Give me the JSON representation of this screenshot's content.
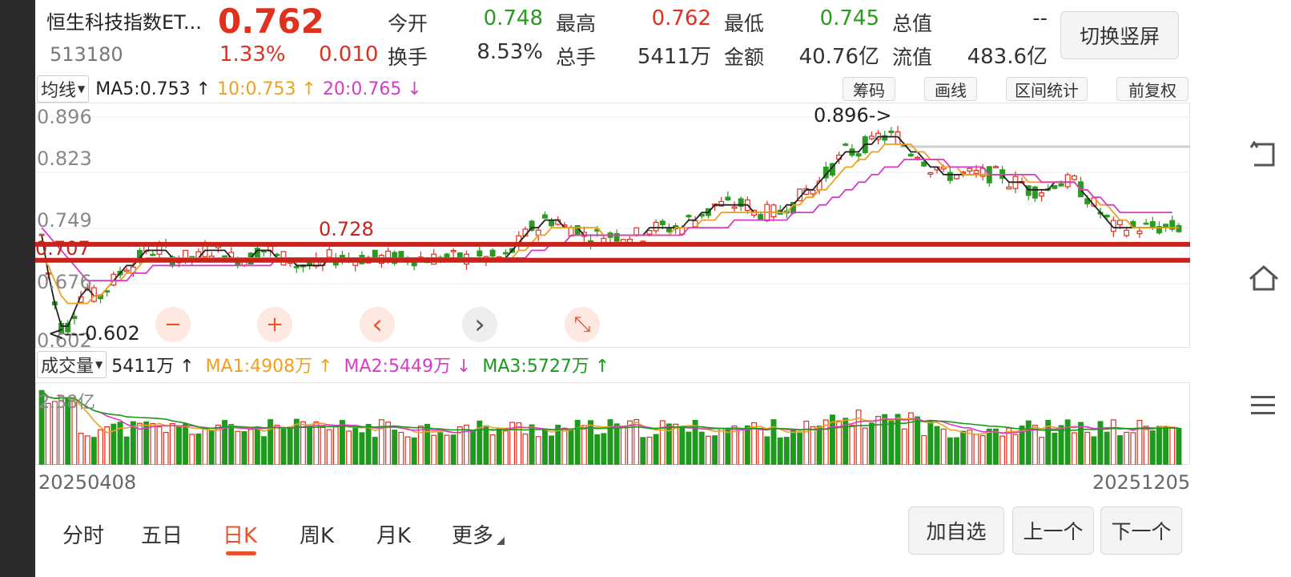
{
  "header": {
    "name": "恒生科技指数ET...",
    "code": "513180",
    "price": "0.762",
    "change_pct": "1.33%",
    "change_amt": "0.010",
    "fields": {
      "open_label": "今开",
      "open": "0.748",
      "high_label": "最高",
      "high": "0.762",
      "low_label": "最低",
      "low": "0.745",
      "total_value_label": "总值",
      "total_value": "--",
      "turnover_label": "换手",
      "turnover": "8.53%",
      "total_hands_label": "总手",
      "total_hands": "5411万",
      "amount_label": "金额",
      "amount": "40.76亿",
      "float_value_label": "流值",
      "float_value": "483.6亿"
    },
    "switch_label": "切换竖屏"
  },
  "price_legend": {
    "selector": "均线",
    "ma5": "MA5:0.753 ↑",
    "ma10": "10:0.753 ↑",
    "ma20": "20:0.765 ↓"
  },
  "toolbar": {
    "chips": "筹码",
    "draw": "画线",
    "range_stats": "区间统计",
    "adjust": "前复权"
  },
  "price_axis": {
    "t1": "0.896",
    "t2": "0.823",
    "t3": "0.749",
    "t4": "0.676",
    "t5": "0.602"
  },
  "annotations": {
    "high_marker": "0.896->",
    "low_marker": "<---0.602",
    "line1": "0.728",
    "line2": "0.707"
  },
  "zoom": {
    "zoom_out": "−",
    "zoom_in": "+",
    "prev": "‹",
    "next": "›",
    "reset": "⤡"
  },
  "volume_legend": {
    "selector": "成交量",
    "vol": "5411万 ↑",
    "ma1": "MA1:4908万 ↑",
    "ma2": "MA2:5449万 ↓",
    "ma3": "MA3:5727万 ↑"
  },
  "volume_axis": {
    "max": "2.38亿"
  },
  "date_range": {
    "start": "20250408",
    "end": "20251205"
  },
  "tabs": [
    "分时",
    "五日",
    "日K",
    "周K",
    "月K",
    "更多"
  ],
  "active_tab": "日K",
  "actions": {
    "add_watch": "加自选",
    "prev_stock": "上一个",
    "next_stock": "下一个"
  },
  "rail_icons": [
    "rotate-icon",
    "home-icon",
    "menu-icon"
  ],
  "colors": {
    "up": "#e0301e",
    "down": "#2a9a22",
    "ma5": "#222222",
    "ma10": "#f0a020",
    "ma20": "#d63cc6",
    "support": "#c8221a"
  },
  "chart_data": {
    "type": "candlestick",
    "price_range": [
      0.602,
      0.896
    ],
    "horizontal_lines": [
      0.728,
      0.707
    ],
    "start_date": "20250408",
    "end_date": "20251205",
    "series": [
      {
        "name": "MA5",
        "values": [
          0.74,
          0.69,
          0.65,
          0.62,
          0.62,
          0.64,
          0.66,
          0.67,
          0.66,
          0.66,
          0.67,
          0.68,
          0.69,
          0.7,
          0.7,
          0.71,
          0.72,
          0.72,
          0.72,
          0.72,
          0.71,
          0.71,
          0.71,
          0.71,
          0.71,
          0.72,
          0.72,
          0.72,
          0.72,
          0.71,
          0.71,
          0.71,
          0.71,
          0.72,
          0.72,
          0.72,
          0.71,
          0.71,
          0.71,
          0.7,
          0.7,
          0.7,
          0.7,
          0.7,
          0.71,
          0.71,
          0.71,
          0.71,
          0.71,
          0.71,
          0.71,
          0.71,
          0.71,
          0.71,
          0.71,
          0.71,
          0.71,
          0.71,
          0.71,
          0.71,
          0.71,
          0.71,
          0.71,
          0.71,
          0.71,
          0.71,
          0.71,
          0.71,
          0.71,
          0.71,
          0.71,
          0.71,
          0.72,
          0.73,
          0.74,
          0.75,
          0.75,
          0.76,
          0.76,
          0.76,
          0.75,
          0.75,
          0.75,
          0.74,
          0.74,
          0.74,
          0.74,
          0.74,
          0.74,
          0.74,
          0.74,
          0.74,
          0.74,
          0.75,
          0.75,
          0.75,
          0.75,
          0.75,
          0.75,
          0.76,
          0.76,
          0.77,
          0.77,
          0.78,
          0.78,
          0.78,
          0.78,
          0.78,
          0.78,
          0.77,
          0.77,
          0.77,
          0.77,
          0.77,
          0.78,
          0.78,
          0.79,
          0.8,
          0.8,
          0.81,
          0.82,
          0.83,
          0.84,
          0.85,
          0.85,
          0.85,
          0.86,
          0.86,
          0.87,
          0.87,
          0.87,
          0.87,
          0.86,
          0.85,
          0.85,
          0.84,
          0.83,
          0.83,
          0.82,
          0.82,
          0.82,
          0.82,
          0.82,
          0.82,
          0.82,
          0.82,
          0.82,
          0.82,
          0.81,
          0.81,
          0.81,
          0.8,
          0.8,
          0.8,
          0.8,
          0.81,
          0.81,
          0.81,
          0.81,
          0.8,
          0.79,
          0.78,
          0.77,
          0.76,
          0.75,
          0.75,
          0.75,
          0.75,
          0.75,
          0.75,
          0.75,
          0.75,
          0.75,
          0.75,
          0.75
        ]
      },
      {
        "name": "MA10",
        "values": [
          0.71,
          0.7,
          0.68,
          0.66,
          0.65,
          0.65,
          0.65,
          0.65,
          0.66,
          0.66,
          0.67,
          0.68,
          0.68,
          0.69,
          0.69,
          0.7,
          0.71,
          0.71,
          0.71,
          0.71,
          0.71,
          0.71,
          0.71,
          0.71,
          0.71,
          0.71,
          0.71,
          0.71,
          0.71,
          0.71,
          0.71,
          0.71,
          0.71,
          0.71,
          0.71,
          0.71,
          0.71,
          0.71,
          0.71,
          0.71,
          0.71,
          0.71,
          0.71,
          0.71,
          0.71,
          0.71,
          0.71,
          0.71,
          0.71,
          0.71,
          0.71,
          0.71,
          0.71,
          0.71,
          0.71,
          0.71,
          0.71,
          0.71,
          0.71,
          0.71,
          0.71,
          0.71,
          0.71,
          0.71,
          0.71,
          0.71,
          0.71,
          0.71,
          0.71,
          0.71,
          0.71,
          0.71,
          0.71,
          0.72,
          0.72,
          0.73,
          0.74,
          0.74,
          0.75,
          0.75,
          0.75,
          0.75,
          0.75,
          0.75,
          0.75,
          0.75,
          0.74,
          0.74,
          0.74,
          0.74,
          0.74,
          0.74,
          0.74,
          0.74,
          0.74,
          0.74,
          0.74,
          0.75,
          0.75,
          0.75,
          0.75,
          0.76,
          0.76,
          0.76,
          0.77,
          0.77,
          0.77,
          0.77,
          0.77,
          0.77,
          0.77,
          0.77,
          0.77,
          0.77,
          0.77,
          0.78,
          0.78,
          0.79,
          0.79,
          0.8,
          0.8,
          0.81,
          0.82,
          0.83,
          0.83,
          0.84,
          0.84,
          0.85,
          0.85,
          0.86,
          0.86,
          0.86,
          0.86,
          0.86,
          0.85,
          0.85,
          0.84,
          0.84,
          0.83,
          0.83,
          0.83,
          0.82,
          0.82,
          0.82,
          0.82,
          0.82,
          0.82,
          0.82,
          0.82,
          0.82,
          0.82,
          0.81,
          0.81,
          0.81,
          0.81,
          0.81,
          0.81,
          0.81,
          0.81,
          0.8,
          0.8,
          0.79,
          0.78,
          0.78,
          0.77,
          0.76,
          0.76,
          0.75,
          0.75,
          0.75,
          0.75,
          0.75,
          0.75,
          0.75,
          0.75
        ]
      },
      {
        "name": "MA20",
        "values": [
          0.75,
          0.74,
          0.73,
          0.72,
          0.71,
          0.7,
          0.69,
          0.68,
          0.68,
          0.68,
          0.68,
          0.68,
          0.68,
          0.68,
          0.69,
          0.69,
          0.69,
          0.7,
          0.7,
          0.7,
          0.7,
          0.7,
          0.7,
          0.7,
          0.7,
          0.7,
          0.7,
          0.7,
          0.7,
          0.7,
          0.7,
          0.7,
          0.7,
          0.7,
          0.7,
          0.7,
          0.71,
          0.71,
          0.71,
          0.71,
          0.71,
          0.71,
          0.71,
          0.71,
          0.71,
          0.71,
          0.71,
          0.71,
          0.71,
          0.71,
          0.71,
          0.71,
          0.71,
          0.71,
          0.71,
          0.71,
          0.71,
          0.71,
          0.71,
          0.71,
          0.71,
          0.71,
          0.71,
          0.71,
          0.71,
          0.71,
          0.71,
          0.71,
          0.71,
          0.71,
          0.71,
          0.71,
          0.71,
          0.71,
          0.71,
          0.72,
          0.72,
          0.72,
          0.73,
          0.73,
          0.73,
          0.74,
          0.74,
          0.74,
          0.74,
          0.74,
          0.74,
          0.74,
          0.74,
          0.74,
          0.74,
          0.74,
          0.74,
          0.74,
          0.74,
          0.74,
          0.74,
          0.74,
          0.74,
          0.75,
          0.75,
          0.75,
          0.75,
          0.75,
          0.75,
          0.75,
          0.76,
          0.76,
          0.76,
          0.76,
          0.76,
          0.76,
          0.76,
          0.76,
          0.76,
          0.77,
          0.77,
          0.77,
          0.77,
          0.78,
          0.78,
          0.79,
          0.79,
          0.8,
          0.8,
          0.81,
          0.81,
          0.82,
          0.82,
          0.83,
          0.83,
          0.83,
          0.84,
          0.84,
          0.84,
          0.84,
          0.84,
          0.84,
          0.84,
          0.83,
          0.83,
          0.83,
          0.83,
          0.83,
          0.83,
          0.82,
          0.82,
          0.82,
          0.82,
          0.82,
          0.82,
          0.82,
          0.82,
          0.81,
          0.81,
          0.81,
          0.81,
          0.81,
          0.81,
          0.8,
          0.8,
          0.79,
          0.79,
          0.78,
          0.78,
          0.77,
          0.77,
          0.77,
          0.77,
          0.77,
          0.77,
          0.77,
          0.77,
          0.77
        ]
      }
    ],
    "volume_range_max": "2.38亿"
  }
}
